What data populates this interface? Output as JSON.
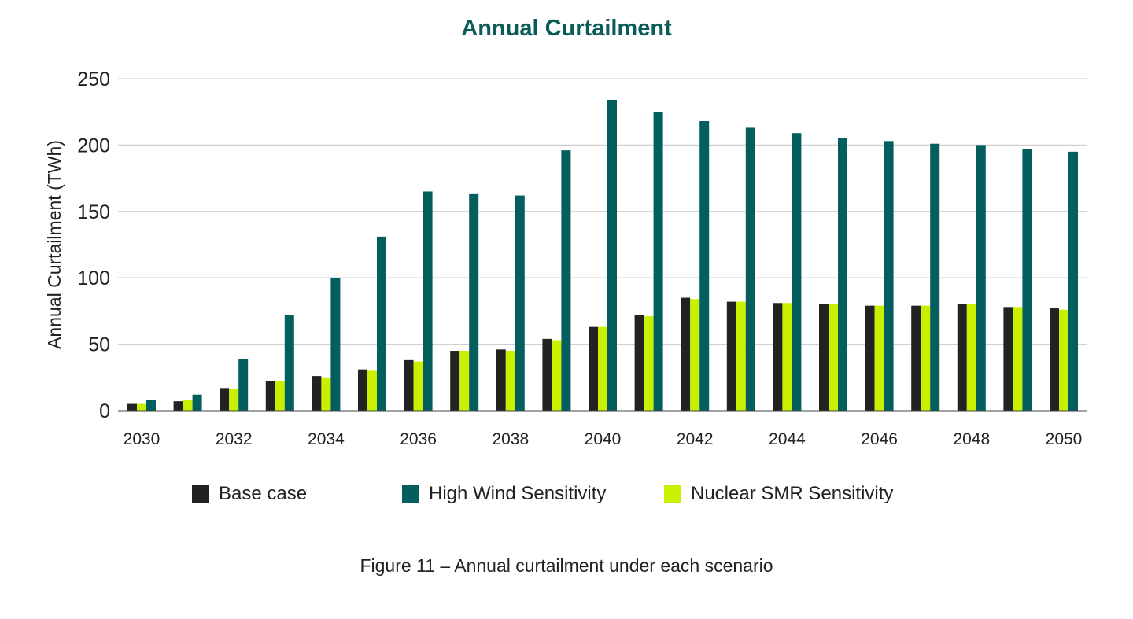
{
  "chart_data": {
    "type": "bar",
    "title": "Annual Curtailment",
    "xlabel": "",
    "ylabel": "Annual Curtailment (TWh)",
    "ylim": [
      0,
      250
    ],
    "yticks": [
      0,
      50,
      100,
      150,
      200,
      250
    ],
    "grid": true,
    "legend_position": "bottom",
    "categories": [
      "2030",
      "2031",
      "2032",
      "2033",
      "2034",
      "2035",
      "2036",
      "2037",
      "2038",
      "2039",
      "2040",
      "2041",
      "2042",
      "2043",
      "2044",
      "2045",
      "2046",
      "2047",
      "2048",
      "2049",
      "2050"
    ],
    "xtick_labels": [
      "2030",
      "",
      "2032",
      "",
      "2034",
      "",
      "2036",
      "",
      "2038",
      "",
      "2040",
      "",
      "2042",
      "",
      "2044",
      "",
      "2046",
      "",
      "2048",
      "",
      "2050"
    ],
    "series": [
      {
        "name": "Base case",
        "color": "#222222",
        "values": [
          5,
          7,
          17,
          22,
          26,
          31,
          38,
          45,
          46,
          54,
          63,
          72,
          85,
          82,
          81,
          80,
          79,
          79,
          80,
          78,
          77
        ]
      },
      {
        "name": "Nuclear SMR Sensitivity",
        "color": "#c8f000",
        "values": [
          5,
          8,
          16,
          22,
          25,
          30,
          37,
          45,
          45,
          53,
          63,
          71,
          84,
          82,
          81,
          80,
          79,
          79,
          80,
          78,
          76
        ]
      },
      {
        "name": "High Wind Sensitivity",
        "color": "#035e5e",
        "values": [
          8,
          12,
          39,
          72,
          100,
          131,
          165,
          163,
          162,
          196,
          234,
          225,
          218,
          213,
          209,
          205,
          203,
          201,
          200,
          197,
          195
        ]
      }
    ],
    "legend_order": [
      "Base case",
      "High Wind Sensitivity",
      "Nuclear SMR Sensitivity"
    ]
  },
  "caption": "Figure 11 – Annual curtailment under each scenario"
}
